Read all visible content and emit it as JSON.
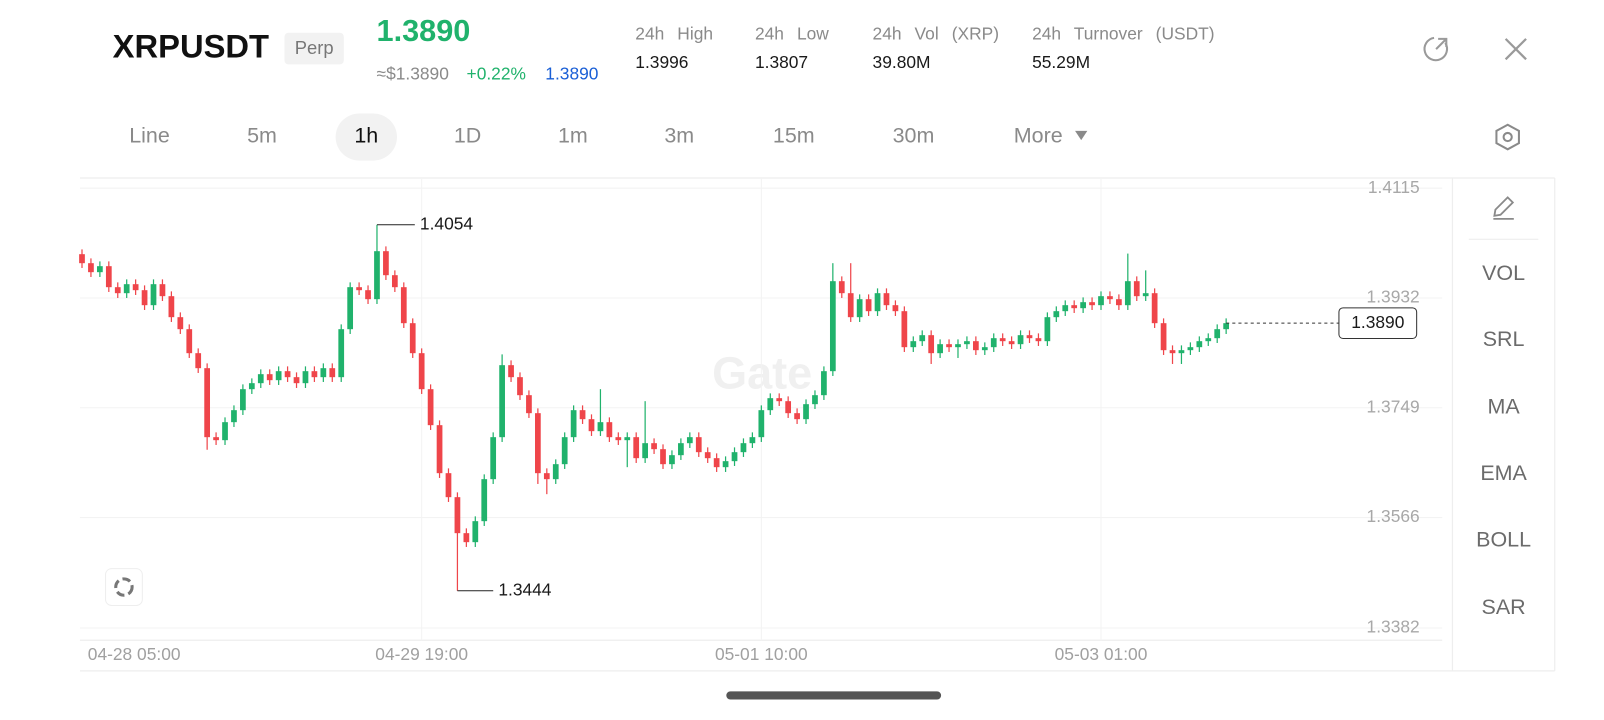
{
  "header": {
    "symbol": "XRPUSDT",
    "badge": "Perp",
    "price": "1.3890",
    "approx": "≈$1.3890",
    "change": "+0.22%",
    "mark": "1.3890",
    "stats": [
      {
        "label": "24h High",
        "value": "1.3996"
      },
      {
        "label": "24h Low",
        "value": "1.3807"
      },
      {
        "label": "24h Vol (XRP)",
        "value": "39.80M"
      },
      {
        "label": "24h Turnover (USDT)",
        "value": "55.29M"
      }
    ]
  },
  "tabs": [
    "Line",
    "5m",
    "1h",
    "1D",
    "1m",
    "3m",
    "15m",
    "30m",
    "More"
  ],
  "indicators": [
    "VOL",
    "SRL",
    "MA",
    "EMA",
    "BOLL",
    "SAR"
  ],
  "chart_data": {
    "type": "candlestick",
    "watermark": "Gate",
    "grid": true,
    "colors": {
      "up": "#20b26c",
      "down": "#ef454a"
    },
    "ylim": [
      1.3382,
      1.4115
    ],
    "yticks": [
      1.4115,
      1.3932,
      1.3749,
      1.3566,
      1.3382
    ],
    "xticks": [
      "04-28 05:00",
      "04-29 19:00",
      "05-01 10:00",
      "05-03 01:00"
    ],
    "high_label": 1.4054,
    "low_label": 1.3444,
    "last_price": {
      "value": 1.389,
      "label": "1.3890"
    },
    "candles": [
      [
        1.4005,
        1.4013,
        1.3982,
        1.399
      ],
      [
        1.399,
        1.3998,
        1.3967,
        1.3975
      ],
      [
        1.3975,
        1.3993,
        1.3967,
        1.3985
      ],
      [
        1.3985,
        1.3993,
        1.3942,
        1.395
      ],
      [
        1.395,
        1.3958,
        1.3932,
        1.394
      ],
      [
        1.394,
        1.3963,
        1.3932,
        1.3955
      ],
      [
        1.3955,
        1.3963,
        1.3937,
        1.3945
      ],
      [
        1.3945,
        1.3953,
        1.3912,
        1.392
      ],
      [
        1.392,
        1.3963,
        1.3912,
        1.3955
      ],
      [
        1.3955,
        1.3963,
        1.3927,
        1.3935
      ],
      [
        1.3935,
        1.3943,
        1.3892,
        1.39
      ],
      [
        1.39,
        1.3908,
        1.3872,
        1.388
      ],
      [
        1.388,
        1.3888,
        1.3832,
        1.384
      ],
      [
        1.384,
        1.3848,
        1.3807,
        1.3815
      ],
      [
        1.3815,
        1.3823,
        1.3679,
        1.37
      ],
      [
        1.37,
        1.3708,
        1.3687,
        1.3695
      ],
      [
        1.3695,
        1.3733,
        1.3687,
        1.3725
      ],
      [
        1.3725,
        1.3753,
        1.3717,
        1.3745
      ],
      [
        1.3745,
        1.3788,
        1.3737,
        1.378
      ],
      [
        1.378,
        1.3798,
        1.3772,
        1.379
      ],
      [
        1.379,
        1.3813,
        1.3782,
        1.3805
      ],
      [
        1.3805,
        1.3813,
        1.3787,
        1.3795
      ],
      [
        1.3795,
        1.3818,
        1.3787,
        1.381
      ],
      [
        1.381,
        1.3818,
        1.3792,
        1.38
      ],
      [
        1.38,
        1.3808,
        1.3782,
        1.379
      ],
      [
        1.379,
        1.3818,
        1.3782,
        1.381
      ],
      [
        1.381,
        1.3818,
        1.3792,
        1.38
      ],
      [
        1.38,
        1.3823,
        1.3792,
        1.3815
      ],
      [
        1.3815,
        1.3823,
        1.3792,
        1.38
      ],
      [
        1.38,
        1.3888,
        1.3792,
        1.388
      ],
      [
        1.388,
        1.3958,
        1.3872,
        1.395
      ],
      [
        1.395,
        1.3958,
        1.3937,
        1.3945
      ],
      [
        1.3945,
        1.3953,
        1.3922,
        1.393
      ],
      [
        1.393,
        1.4054,
        1.3922,
        1.401
      ],
      [
        1.401,
        1.4018,
        1.3962,
        1.397
      ],
      [
        1.397,
        1.3978,
        1.3942,
        1.395
      ],
      [
        1.395,
        1.3958,
        1.3882,
        1.389
      ],
      [
        1.389,
        1.3898,
        1.3832,
        1.384
      ],
      [
        1.384,
        1.3848,
        1.3772,
        1.378
      ],
      [
        1.378,
        1.3788,
        1.3712,
        1.372
      ],
      [
        1.372,
        1.3728,
        1.3632,
        1.364
      ],
      [
        1.364,
        1.3648,
        1.3592,
        1.36
      ],
      [
        1.36,
        1.3608,
        1.3444,
        1.354
      ],
      [
        1.354,
        1.3548,
        1.3517,
        1.3525
      ],
      [
        1.3525,
        1.3568,
        1.3517,
        1.356
      ],
      [
        1.356,
        1.3638,
        1.3552,
        1.363
      ],
      [
        1.363,
        1.3708,
        1.3622,
        1.37
      ],
      [
        1.37,
        1.3838,
        1.3692,
        1.382
      ],
      [
        1.382,
        1.3828,
        1.3792,
        1.38
      ],
      [
        1.38,
        1.3808,
        1.3762,
        1.377
      ],
      [
        1.377,
        1.3778,
        1.3732,
        1.374
      ],
      [
        1.374,
        1.3748,
        1.3622,
        1.364
      ],
      [
        1.364,
        1.3648,
        1.3605,
        1.363
      ],
      [
        1.363,
        1.3663,
        1.3622,
        1.3655
      ],
      [
        1.3655,
        1.3708,
        1.3647,
        1.37
      ],
      [
        1.37,
        1.3753,
        1.3692,
        1.3745
      ],
      [
        1.3745,
        1.3753,
        1.3722,
        1.373
      ],
      [
        1.373,
        1.3738,
        1.3702,
        1.371
      ],
      [
        1.371,
        1.378,
        1.3702,
        1.3725
      ],
      [
        1.3725,
        1.3733,
        1.3692,
        1.37
      ],
      [
        1.37,
        1.3708,
        1.3687,
        1.3695
      ],
      [
        1.3695,
        1.3708,
        1.365,
        1.37
      ],
      [
        1.37,
        1.3708,
        1.3657,
        1.3665
      ],
      [
        1.3665,
        1.376,
        1.3657,
        1.369
      ],
      [
        1.369,
        1.3698,
        1.3672,
        1.368
      ],
      [
        1.368,
        1.3688,
        1.3647,
        1.3655
      ],
      [
        1.3655,
        1.3678,
        1.3647,
        1.367
      ],
      [
        1.367,
        1.3698,
        1.3662,
        1.369
      ],
      [
        1.369,
        1.3708,
        1.3682,
        1.37
      ],
      [
        1.37,
        1.3708,
        1.3667,
        1.3675
      ],
      [
        1.3675,
        1.3683,
        1.3657,
        1.3665
      ],
      [
        1.3665,
        1.3673,
        1.3642,
        1.365
      ],
      [
        1.365,
        1.3668,
        1.3642,
        1.366
      ],
      [
        1.366,
        1.3683,
        1.3652,
        1.3675
      ],
      [
        1.3675,
        1.3698,
        1.3667,
        1.369
      ],
      [
        1.369,
        1.3708,
        1.3682,
        1.37
      ],
      [
        1.37,
        1.3753,
        1.3692,
        1.3745
      ],
      [
        1.3745,
        1.3773,
        1.3737,
        1.3765
      ],
      [
        1.3765,
        1.3773,
        1.3752,
        1.376
      ],
      [
        1.376,
        1.3768,
        1.3732,
        1.374
      ],
      [
        1.374,
        1.3748,
        1.3722,
        1.373
      ],
      [
        1.373,
        1.3763,
        1.3722,
        1.3755
      ],
      [
        1.3755,
        1.3778,
        1.3747,
        1.377
      ],
      [
        1.377,
        1.3818,
        1.3762,
        1.381
      ],
      [
        1.381,
        1.399,
        1.3802,
        1.396
      ],
      [
        1.396,
        1.3968,
        1.3932,
        1.394
      ],
      [
        1.394,
        1.399,
        1.3892,
        1.39
      ],
      [
        1.39,
        1.3938,
        1.3892,
        1.393
      ],
      [
        1.393,
        1.3938,
        1.3902,
        1.391
      ],
      [
        1.391,
        1.3948,
        1.3902,
        1.394
      ],
      [
        1.394,
        1.3948,
        1.3912,
        1.392
      ],
      [
        1.392,
        1.3928,
        1.3902,
        1.391
      ],
      [
        1.391,
        1.3918,
        1.3842,
        1.385
      ],
      [
        1.385,
        1.3868,
        1.3842,
        1.386
      ],
      [
        1.386,
        1.3878,
        1.3852,
        1.387
      ],
      [
        1.387,
        1.3878,
        1.3822,
        1.384
      ],
      [
        1.384,
        1.3863,
        1.3832,
        1.3855
      ],
      [
        1.3855,
        1.3863,
        1.3842,
        1.385
      ],
      [
        1.385,
        1.3863,
        1.3832,
        1.3855
      ],
      [
        1.3855,
        1.3868,
        1.3847,
        1.386
      ],
      [
        1.386,
        1.3868,
        1.3837,
        1.3845
      ],
      [
        1.3845,
        1.3858,
        1.3837,
        1.385
      ],
      [
        1.385,
        1.3873,
        1.3842,
        1.3865
      ],
      [
        1.3865,
        1.3873,
        1.3852,
        1.386
      ],
      [
        1.386,
        1.3868,
        1.3847,
        1.3855
      ],
      [
        1.3855,
        1.3878,
        1.3847,
        1.387
      ],
      [
        1.387,
        1.3878,
        1.3857,
        1.3865
      ],
      [
        1.3865,
        1.3873,
        1.3852,
        1.386
      ],
      [
        1.386,
        1.3908,
        1.3852,
        1.39
      ],
      [
        1.39,
        1.3918,
        1.3892,
        1.391
      ],
      [
        1.391,
        1.3928,
        1.3902,
        1.392
      ],
      [
        1.392,
        1.3928,
        1.3907,
        1.3915
      ],
      [
        1.3915,
        1.3933,
        1.3907,
        1.3925
      ],
      [
        1.3925,
        1.3933,
        1.3912,
        1.392
      ],
      [
        1.392,
        1.3943,
        1.3912,
        1.3935
      ],
      [
        1.3935,
        1.3943,
        1.3922,
        1.393
      ],
      [
        1.393,
        1.3938,
        1.3912,
        1.392
      ],
      [
        1.392,
        1.4006,
        1.3912,
        1.396
      ],
      [
        1.396,
        1.3968,
        1.3927,
        1.3935
      ],
      [
        1.3935,
        1.3978,
        1.3927,
        1.394
      ],
      [
        1.394,
        1.3948,
        1.3882,
        1.389
      ],
      [
        1.389,
        1.3898,
        1.3837,
        1.3845
      ],
      [
        1.3845,
        1.3853,
        1.3822,
        1.384
      ],
      [
        1.384,
        1.3853,
        1.3822,
        1.3845
      ],
      [
        1.3845,
        1.3858,
        1.3837,
        1.385
      ],
      [
        1.385,
        1.3868,
        1.3842,
        1.386
      ],
      [
        1.386,
        1.3873,
        1.3852,
        1.3865
      ],
      [
        1.3865,
        1.3888,
        1.3857,
        1.388
      ],
      [
        1.388,
        1.3898,
        1.3872,
        1.389
      ]
    ]
  }
}
